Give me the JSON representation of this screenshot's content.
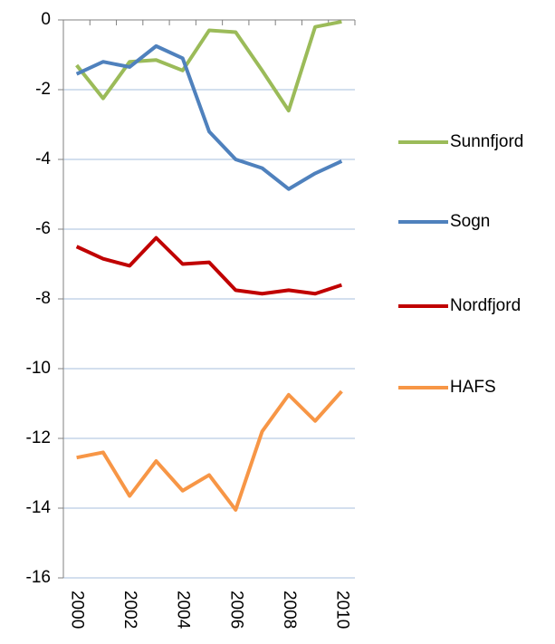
{
  "chart_data": {
    "type": "line",
    "categories": [
      "2000",
      null,
      "2002",
      null,
      "2004",
      null,
      "2006",
      null,
      "2008",
      null,
      "2010"
    ],
    "series": [
      {
        "name": "Sunnfjord",
        "color": "#9bbb59",
        "values": [
          -1.3,
          -2.25,
          -1.2,
          -1.15,
          -1.45,
          -0.3,
          -0.35,
          -1.45,
          -2.6,
          -0.2,
          -0.05
        ]
      },
      {
        "name": "Sogn",
        "color": "#4f81bd",
        "values": [
          -1.55,
          -1.2,
          -1.35,
          -0.75,
          -1.1,
          -3.2,
          -4.0,
          -4.25,
          -4.85,
          -4.4,
          -4.05
        ]
      },
      {
        "name": "Nordfjord",
        "color": "#c00000",
        "values": [
          -6.5,
          -6.85,
          -7.05,
          -6.25,
          -7.0,
          -6.95,
          -7.75,
          -7.85,
          -7.75,
          -7.85,
          -7.6
        ]
      },
      {
        "name": "HAFS",
        "color": "#f79646",
        "values": [
          -12.55,
          -12.4,
          -13.65,
          -12.65,
          -13.5,
          -13.05,
          -14.05,
          -11.8,
          -10.75,
          -11.5,
          -10.65
        ]
      }
    ],
    "ylim": [
      -16,
      0
    ],
    "yticks": [
      0,
      -2,
      -4,
      -6,
      -8,
      -10,
      -12,
      -14,
      -16
    ],
    "grid": true,
    "legend": "right"
  }
}
